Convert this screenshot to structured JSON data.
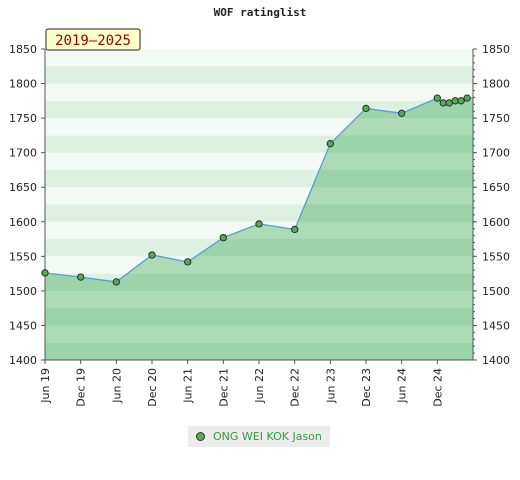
{
  "title": "WOF ratinglist",
  "period_badge": "2019–2025",
  "legend": {
    "player_name": "ONG WEI KOK Jason"
  },
  "colors": {
    "line": "#5b9bd5",
    "area": "#86c994",
    "marker": "#56a855",
    "badge_bg": "#ffffcc"
  },
  "chart_data": {
    "type": "area",
    "title": "WOF ratinglist",
    "xlabel": "",
    "ylabel": "",
    "ylim": [
      1400,
      1850
    ],
    "y_ticks": [
      1400,
      1450,
      1500,
      1550,
      1600,
      1650,
      1700,
      1750,
      1800,
      1850
    ],
    "x_tick_labels": [
      "Jun 19",
      "Dec 19",
      "Jun 20",
      "Dec 20",
      "Jun 21",
      "Dec 21",
      "Jun 22",
      "Dec 22",
      "Jun 23",
      "Dec 23",
      "Jun 24",
      "Dec 24"
    ],
    "x_tick_dates": [
      "2019-06",
      "2019-12",
      "2020-06",
      "2020-12",
      "2021-06",
      "2021-12",
      "2022-06",
      "2022-12",
      "2023-06",
      "2023-12",
      "2024-06",
      "2024-12"
    ],
    "xlim": [
      "2019-06",
      "2025-06"
    ],
    "grid": true,
    "legend_position": "bottom",
    "series": [
      {
        "name": "ONG WEI KOK Jason",
        "x": [
          "2019-06",
          "2019-12",
          "2020-06",
          "2020-12",
          "2021-06",
          "2021-12",
          "2022-06",
          "2022-12",
          "2023-06",
          "2023-12",
          "2024-06",
          "2024-12",
          "2025-01",
          "2025-02",
          "2025-03",
          "2025-04",
          "2025-05"
        ],
        "values": [
          1526,
          1520,
          1513,
          1552,
          1542,
          1577,
          1597,
          1589,
          1713,
          1764,
          1757,
          1779,
          1772,
          1772,
          1775,
          1775,
          1779
        ]
      }
    ]
  }
}
